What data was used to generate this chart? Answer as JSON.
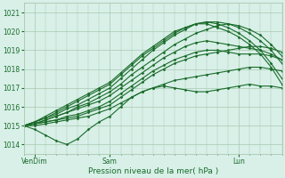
{
  "title": "",
  "xlabel": "Pression niveau de la mer( hPa )",
  "bg_color": "#d8f0e8",
  "grid_color": "#a8c8b0",
  "line_color": "#1a6b2a",
  "ylim": [
    1013.5,
    1021.5
  ],
  "xlim": [
    0,
    96
  ],
  "x_ticks": [
    4,
    32,
    80
  ],
  "x_tick_labels": [
    "VenDim",
    "Sam",
    "Lun"
  ],
  "y_ticks": [
    1014,
    1015,
    1016,
    1017,
    1018,
    1019,
    1020,
    1021
  ],
  "series": [
    {
      "x": [
        0,
        4,
        8,
        12,
        16,
        20,
        24,
        28,
        32,
        36,
        40,
        44,
        48,
        52,
        56,
        60,
        64,
        68,
        72,
        76,
        80,
        84,
        88,
        92,
        96
      ],
      "y": [
        1015.0,
        1014.8,
        1014.5,
        1014.2,
        1014.0,
        1014.3,
        1014.8,
        1015.2,
        1015.5,
        1016.0,
        1016.5,
        1016.8,
        1017.0,
        1017.1,
        1017.0,
        1016.9,
        1016.8,
        1016.8,
        1016.9,
        1017.0,
        1017.1,
        1017.2,
        1017.1,
        1017.1,
        1017.0
      ],
      "lw": 0.8,
      "marker": "D",
      "ms": 1.5
    },
    {
      "x": [
        0,
        4,
        8,
        12,
        16,
        20,
        24,
        28,
        32,
        36,
        40,
        44,
        48,
        52,
        56,
        60,
        64,
        68,
        72,
        76,
        80,
        84,
        88,
        92,
        96
      ],
      "y": [
        1015.0,
        1015.0,
        1015.1,
        1015.2,
        1015.3,
        1015.4,
        1015.5,
        1015.7,
        1015.9,
        1016.2,
        1016.5,
        1016.8,
        1017.0,
        1017.2,
        1017.4,
        1017.5,
        1017.6,
        1017.7,
        1017.8,
        1017.9,
        1018.0,
        1018.1,
        1018.1,
        1018.0,
        1017.9
      ],
      "lw": 0.8,
      "marker": "D",
      "ms": 1.5
    },
    {
      "x": [
        0,
        4,
        8,
        12,
        16,
        20,
        24,
        28,
        32,
        36,
        40,
        44,
        48,
        52,
        56,
        60,
        64,
        68,
        72,
        76,
        80,
        84,
        88,
        92,
        96
      ],
      "y": [
        1015.0,
        1015.1,
        1015.2,
        1015.3,
        1015.4,
        1015.5,
        1015.7,
        1015.9,
        1016.1,
        1016.5,
        1016.9,
        1017.3,
        1017.7,
        1018.0,
        1018.3,
        1018.5,
        1018.7,
        1018.8,
        1018.9,
        1019.0,
        1019.1,
        1019.2,
        1019.2,
        1019.1,
        1018.9
      ],
      "lw": 0.8,
      "marker": "D",
      "ms": 1.5
    },
    {
      "x": [
        0,
        4,
        8,
        12,
        16,
        20,
        24,
        28,
        32,
        36,
        40,
        44,
        48,
        52,
        56,
        60,
        64,
        68,
        72,
        76,
        80,
        84,
        88,
        92,
        96
      ],
      "y": [
        1015.0,
        1015.1,
        1015.2,
        1015.3,
        1015.5,
        1015.6,
        1015.8,
        1016.0,
        1016.3,
        1016.7,
        1017.1,
        1017.5,
        1017.9,
        1018.2,
        1018.5,
        1018.7,
        1018.9,
        1019.0,
        1019.0,
        1018.9,
        1018.8,
        1018.8,
        1018.8,
        1018.7,
        1018.5
      ],
      "lw": 0.8,
      "marker": "D",
      "ms": 1.5
    },
    {
      "x": [
        0,
        4,
        8,
        12,
        16,
        20,
        24,
        28,
        32,
        36,
        40,
        44,
        48,
        52,
        56,
        60,
        64,
        68,
        72,
        76,
        80,
        84,
        88,
        92,
        96
      ],
      "y": [
        1015.0,
        1015.1,
        1015.3,
        1015.5,
        1015.7,
        1015.9,
        1016.1,
        1016.3,
        1016.6,
        1017.0,
        1017.4,
        1017.8,
        1018.2,
        1018.6,
        1018.9,
        1019.2,
        1019.4,
        1019.5,
        1019.4,
        1019.3,
        1019.2,
        1019.1,
        1019.0,
        1018.8,
        1018.5
      ],
      "lw": 0.8,
      "marker": "D",
      "ms": 1.5
    },
    {
      "x": [
        0,
        4,
        8,
        12,
        16,
        20,
        24,
        28,
        32,
        36,
        40,
        44,
        48,
        52,
        56,
        60,
        64,
        68,
        72,
        76,
        80,
        84,
        88,
        92,
        96
      ],
      "y": [
        1015.0,
        1015.1,
        1015.3,
        1015.5,
        1015.7,
        1016.0,
        1016.2,
        1016.5,
        1016.8,
        1017.2,
        1017.7,
        1018.1,
        1018.5,
        1018.9,
        1019.3,
        1019.6,
        1019.9,
        1020.1,
        1020.3,
        1020.4,
        1020.3,
        1020.1,
        1019.8,
        1019.3,
        1018.7
      ],
      "lw": 0.8,
      "marker": "D",
      "ms": 1.5
    },
    {
      "x": [
        0,
        4,
        8,
        12,
        16,
        20,
        24,
        28,
        32,
        36,
        40,
        44,
        48,
        52,
        56,
        60,
        64,
        68,
        72,
        76,
        80,
        84,
        88,
        92,
        96
      ],
      "y": [
        1015.0,
        1015.2,
        1015.4,
        1015.6,
        1015.9,
        1016.1,
        1016.4,
        1016.7,
        1017.0,
        1017.5,
        1018.0,
        1018.5,
        1019.0,
        1019.4,
        1019.8,
        1020.1,
        1020.4,
        1020.5,
        1020.5,
        1020.4,
        1020.2,
        1019.9,
        1019.5,
        1019.0,
        1018.3
      ],
      "lw": 0.8,
      "marker": "D",
      "ms": 1.5
    },
    {
      "x": [
        0,
        4,
        8,
        12,
        16,
        20,
        24,
        28,
        32,
        36,
        40,
        44,
        48,
        52,
        56,
        60,
        64,
        68,
        72,
        76,
        80,
        84,
        88,
        92,
        96
      ],
      "y": [
        1015.0,
        1015.2,
        1015.4,
        1015.7,
        1016.0,
        1016.3,
        1016.6,
        1016.9,
        1017.2,
        1017.7,
        1018.2,
        1018.7,
        1019.1,
        1019.5,
        1019.9,
        1020.2,
        1020.4,
        1020.5,
        1020.4,
        1020.2,
        1019.9,
        1019.5,
        1019.0,
        1018.3,
        1017.5
      ],
      "lw": 0.8,
      "marker": "D",
      "ms": 1.5
    },
    {
      "x": [
        0,
        4,
        8,
        12,
        16,
        20,
        24,
        28,
        32,
        36,
        40,
        44,
        48,
        52,
        56,
        60,
        64,
        68,
        72,
        76,
        80,
        84,
        88,
        92,
        96
      ],
      "y": [
        1015.0,
        1015.2,
        1015.5,
        1015.8,
        1016.1,
        1016.4,
        1016.7,
        1017.0,
        1017.3,
        1017.8,
        1018.3,
        1018.8,
        1019.2,
        1019.6,
        1020.0,
        1020.2,
        1020.4,
        1020.4,
        1020.2,
        1020.0,
        1019.7,
        1019.3,
        1018.8,
        1018.1,
        1017.2
      ],
      "lw": 0.8,
      "marker": "D",
      "ms": 1.5
    }
  ]
}
